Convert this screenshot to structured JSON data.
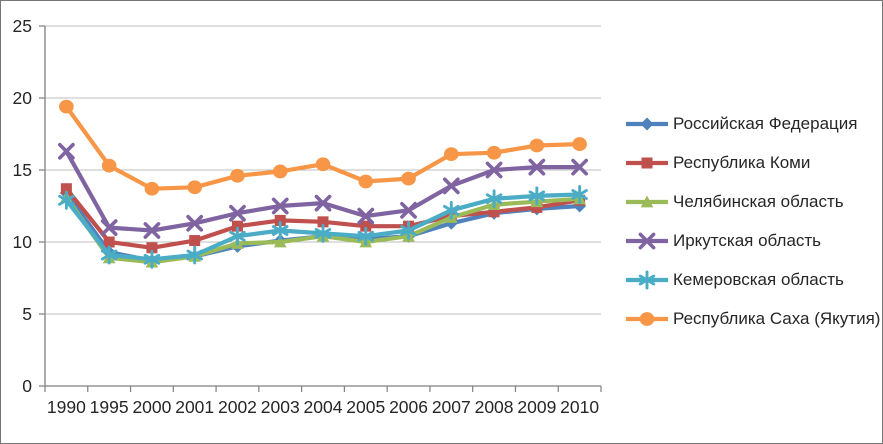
{
  "chart_data": {
    "type": "line",
    "title": "",
    "xlabel": "",
    "ylabel": "",
    "categories": [
      "1990",
      "1995",
      "2000",
      "2001",
      "2002",
      "2003",
      "2004",
      "2005",
      "2006",
      "2007",
      "2008",
      "2009",
      "2010"
    ],
    "y_ticks": [
      0,
      5,
      10,
      15,
      20,
      25
    ],
    "y_tick_labels": [
      "0",
      "5",
      "10",
      "15",
      "20",
      "25"
    ],
    "ylim": [
      0,
      25
    ],
    "grid": "horizontal",
    "legend_position": "right",
    "axis_color": "#808080",
    "grid_color": "#BFBFBF",
    "text_color": "#262626",
    "series": [
      {
        "name": "Российская Федерация",
        "color": "#4F81BD",
        "marker": "diamond",
        "values": [
          13.4,
          9.3,
          8.7,
          9.0,
          9.7,
          10.1,
          10.4,
          10.2,
          10.4,
          11.3,
          12.0,
          12.3,
          12.5
        ]
      },
      {
        "name": "Республика Коми",
        "color": "#C0504D",
        "marker": "square",
        "values": [
          13.7,
          10.0,
          9.6,
          10.1,
          11.1,
          11.5,
          11.4,
          11.1,
          11.1,
          11.8,
          12.1,
          12.4,
          12.9
        ]
      },
      {
        "name": "Челябинская область",
        "color": "#9BBB59",
        "marker": "triangle",
        "values": [
          13.1,
          8.9,
          8.6,
          9.0,
          9.9,
          10.0,
          10.4,
          10.0,
          10.4,
          11.7,
          12.6,
          12.8,
          13.0
        ]
      },
      {
        "name": "Иркутская область",
        "color": "#8064A2",
        "marker": "x",
        "values": [
          16.3,
          11.0,
          10.8,
          11.3,
          12.0,
          12.5,
          12.7,
          11.8,
          12.2,
          13.9,
          15.0,
          15.2,
          15.2
        ]
      },
      {
        "name": "Кемеровская область",
        "color": "#4BACC6",
        "marker": "asterisk",
        "values": [
          12.9,
          9.1,
          8.8,
          9.1,
          10.4,
          10.8,
          10.6,
          10.4,
          10.8,
          12.2,
          13.0,
          13.2,
          13.3
        ]
      },
      {
        "name": "Республика Саха (Якутия)",
        "color": "#F79646",
        "marker": "circle",
        "values": [
          19.4,
          15.3,
          13.7,
          13.8,
          14.6,
          14.9,
          15.4,
          14.2,
          14.4,
          16.1,
          16.2,
          16.7,
          16.8
        ]
      }
    ]
  }
}
